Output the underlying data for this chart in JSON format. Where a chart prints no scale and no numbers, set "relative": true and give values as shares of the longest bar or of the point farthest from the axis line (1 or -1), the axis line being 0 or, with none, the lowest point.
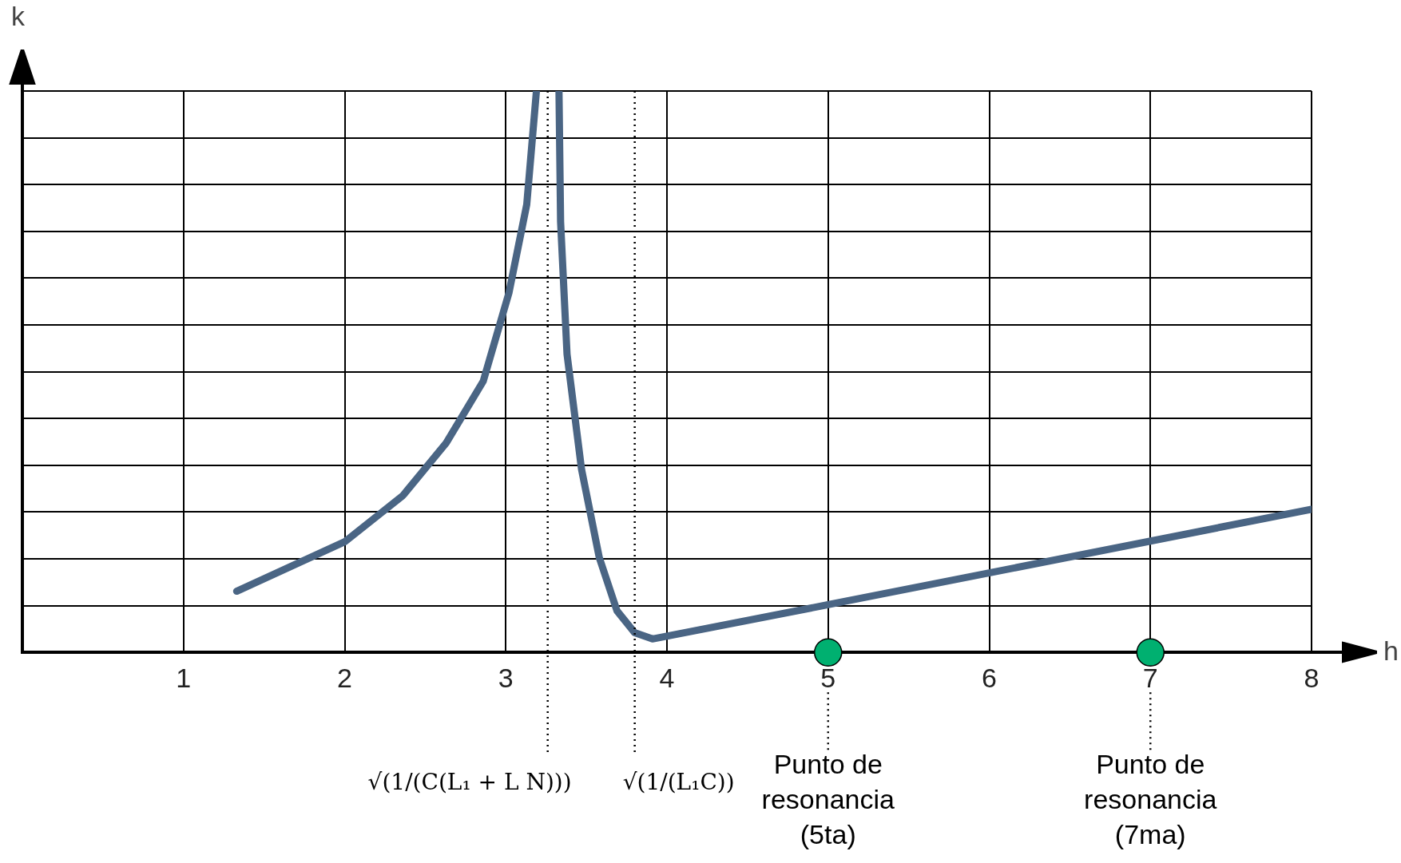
{
  "chart_data": {
    "type": "line",
    "xlabel": "h",
    "ylabel": "k",
    "relative": true,
    "xlim": [
      0,
      8
    ],
    "xticks": [
      1,
      2,
      3,
      4,
      5,
      6,
      7,
      8
    ],
    "grid": true,
    "legend": false,
    "tick_labels": "x",
    "marker": "none",
    "line_style": "solid",
    "series": [
      {
        "color": "#4a6584",
        "x": [
          1.33,
          2.0,
          2.36,
          2.63,
          2.86,
          3.02,
          3.13,
          3.19,
          null,
          3.33,
          3.34,
          3.38,
          3.47,
          3.58,
          3.69,
          3.8,
          3.91,
          5.0,
          8.0
        ],
        "values": [
          0.109,
          0.197,
          0.279,
          0.373,
          0.483,
          0.641,
          0.798,
          1.0,
          null,
          1.0,
          0.767,
          0.531,
          0.326,
          0.169,
          0.074,
          0.035,
          0.024,
          0.085,
          0.255
        ]
      },
      {
        "type": "scatter",
        "marker": "circle",
        "color": "#00b070",
        "x": [
          5,
          7
        ],
        "values": [
          0,
          0
        ]
      }
    ],
    "ref_lines": [
      {
        "axis": "x",
        "value": 3.26,
        "label": "√(1/(C(L₁ + L N)))",
        "line_style": "dotted"
      },
      {
        "axis": "x",
        "value": 3.8,
        "label": "√(1/(L₁C))",
        "line_style": "dotted"
      }
    ],
    "annotations": [
      "Punto de resonancia (5ta)",
      "Punto de resonancia (7ma)"
    ]
  }
}
